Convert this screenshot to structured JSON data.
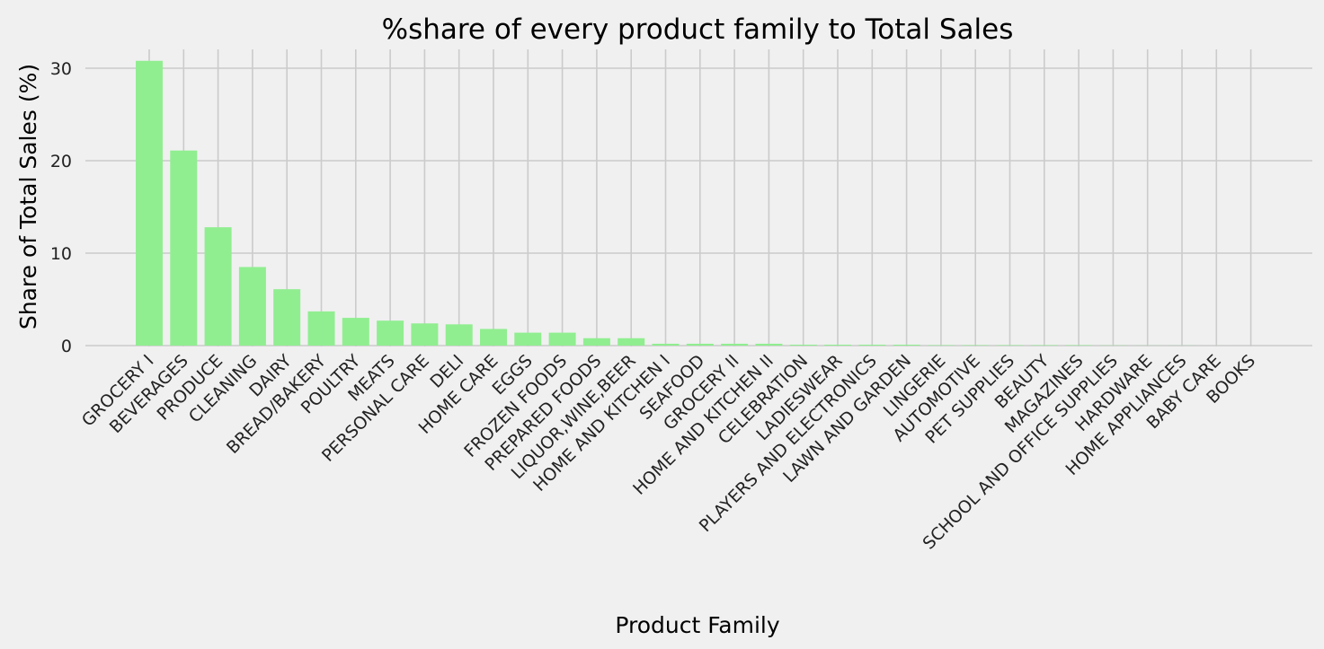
{
  "chart_data": {
    "type": "bar",
    "title": "%share of every product family to Total Sales",
    "xlabel": "Product Family",
    "ylabel": "Share of Total Sales (%)",
    "ylim": [
      0,
      32.5
    ],
    "yticks": [
      0,
      10,
      20,
      30
    ],
    "grid": true,
    "bar_color": "#90ee90",
    "background_color": "#f0f0f0",
    "grid_color": "#cbcbcb",
    "categories": [
      "GROCERY I",
      "BEVERAGES",
      "PRODUCE",
      "CLEANING",
      "DAIRY",
      "BREAD/BAKERY",
      "POULTRY",
      "MEATS",
      "PERSONAL CARE",
      "DELI",
      "HOME CARE",
      "EGGS",
      "FROZEN FOODS",
      "PREPARED FOODS",
      "LIQUOR,WINE,BEER",
      "HOME AND KITCHEN I",
      "SEAFOOD",
      "GROCERY II",
      "HOME AND KITCHEN II",
      "CELEBRATION",
      "LADIESWEAR",
      "PLAYERS AND ELECTRONICS",
      "LAWN AND GARDEN",
      "LINGERIE",
      "AUTOMOTIVE",
      "PET SUPPLIES",
      "BEAUTY",
      "MAGAZINES",
      "SCHOOL AND OFFICE SUPPLIES",
      "HARDWARE",
      "HOME APPLIANCES",
      "BABY CARE",
      "BOOKS"
    ],
    "values": [
      30.8,
      21.1,
      12.8,
      8.5,
      6.1,
      3.7,
      3.0,
      2.7,
      2.4,
      2.3,
      1.8,
      1.4,
      1.4,
      0.8,
      0.8,
      0.2,
      0.2,
      0.2,
      0.2,
      0.1,
      0.1,
      0.1,
      0.1,
      0.05,
      0.05,
      0.05,
      0.05,
      0.05,
      0.02,
      0.01,
      0.01,
      0.005,
      0.001
    ]
  }
}
